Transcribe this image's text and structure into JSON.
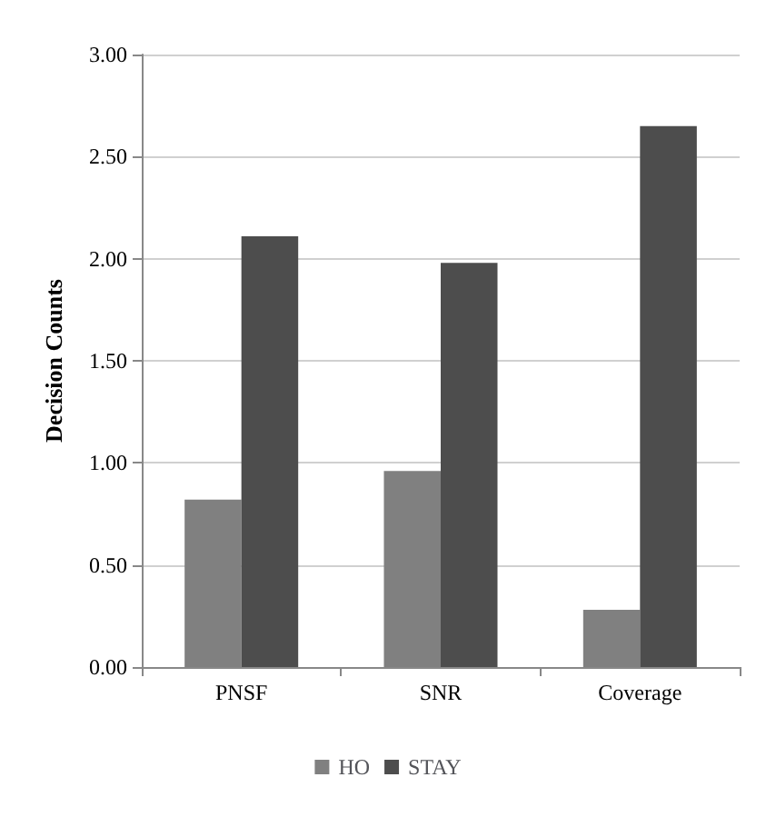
{
  "chart_data": {
    "type": "bar",
    "ylabel": "Decision Counts",
    "categories": [
      "PNSF",
      "SNR",
      "Coverage"
    ],
    "series": [
      {
        "name": "HO",
        "color": "#808080",
        "values": [
          0.82,
          0.96,
          0.28
        ]
      },
      {
        "name": "STAY",
        "color": "#4d4d4d",
        "values": [
          2.11,
          1.98,
          2.65
        ]
      }
    ],
    "ylim": [
      0,
      3
    ],
    "yticks": [
      {
        "value": 0,
        "label": "0.00"
      },
      {
        "value": 0.5,
        "label": "0.50"
      },
      {
        "value": 1,
        "label": "1.00"
      },
      {
        "value": 1.5,
        "label": "1.50"
      },
      {
        "value": 2,
        "label": "2.00"
      },
      {
        "value": 2.5,
        "label": "2.50"
      },
      {
        "value": 3,
        "label": "3.00"
      }
    ],
    "grid": "y",
    "legend": "bottom"
  }
}
